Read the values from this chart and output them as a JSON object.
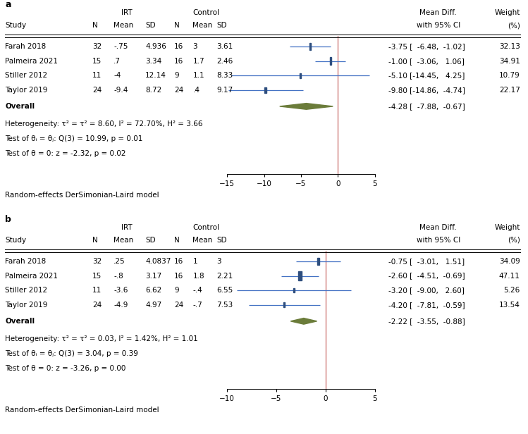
{
  "panel_a": {
    "label": "a",
    "studies": [
      {
        "name": "Farah 2018",
        "irt_n": "32",
        "irt_mean": "-.75",
        "irt_sd": "4.936",
        "ctrl_n": "16",
        "ctrl_mean": "3",
        "ctrl_sd": "3.61",
        "est": -3.75,
        "ci_lo": -6.48,
        "ci_hi": -1.02,
        "weight": "32.13"
      },
      {
        "name": "Palmeira 2021",
        "irt_n": "15",
        "irt_mean": ".7",
        "irt_sd": "3.34",
        "ctrl_n": "16",
        "ctrl_mean": "1.7",
        "ctrl_sd": "2.46",
        "est": -1.0,
        "ci_lo": -3.06,
        "ci_hi": 1.06,
        "weight": "34.91"
      },
      {
        "name": "Stiller 2012",
        "irt_n": "11",
        "irt_mean": "-4",
        "irt_sd": "12.14",
        "ctrl_n": "9",
        "ctrl_mean": "1.1",
        "ctrl_sd": "8.33",
        "est": -5.1,
        "ci_lo": -14.45,
        "ci_hi": 4.25,
        "weight": "10.79"
      },
      {
        "name": "Taylor 2019",
        "irt_n": "24",
        "irt_mean": "-9.4",
        "irt_sd": "8.72",
        "ctrl_n": "24",
        "ctrl_mean": ".4",
        "ctrl_sd": "9.17",
        "est": -9.8,
        "ci_lo": -14.86,
        "ci_hi": -4.74,
        "weight": "22.17"
      }
    ],
    "overall": {
      "est": -4.28,
      "ci_lo": -7.88,
      "ci_hi": -0.67
    },
    "xmin": -15,
    "xmax": 5,
    "xticks": [
      -15,
      -10,
      -5,
      0,
      5
    ],
    "heterogeneity": "τ² = 8.60, I² = 72.70%, H² = 3.66",
    "test_het": "Q(3) = 10.99, p = 0.01",
    "test_zero": "z = -2.32, p = 0.02",
    "ci_texts": [
      "-3.75 [  -6.48,  -1.02]",
      "-1.00 [  -3.06,   1.06]",
      "-5.10 [-14.45,   4.25]",
      "-9.80 [-14.86,  -4.74]"
    ],
    "overall_ci_text": "-4.28 [  -7.88,  -0.67]"
  },
  "panel_b": {
    "label": "b",
    "studies": [
      {
        "name": "Farah 2018",
        "irt_n": "32",
        "irt_mean": ".25",
        "irt_sd": "4.0837",
        "ctrl_n": "16",
        "ctrl_mean": "1",
        "ctrl_sd": "3",
        "est": -0.75,
        "ci_lo": -3.01,
        "ci_hi": 1.51,
        "weight": "34.09"
      },
      {
        "name": "Palmeira 2021",
        "irt_n": "15",
        "irt_mean": "-.8",
        "irt_sd": "3.17",
        "ctrl_n": "16",
        "ctrl_mean": "1.8",
        "ctrl_sd": "2.21",
        "est": -2.6,
        "ci_lo": -4.51,
        "ci_hi": -0.69,
        "weight": "47.11"
      },
      {
        "name": "Stiller 2012",
        "irt_n": "11",
        "irt_mean": "-3.6",
        "irt_sd": "6.62",
        "ctrl_n": "9",
        "ctrl_mean": "-.4",
        "ctrl_sd": "6.55",
        "est": -3.2,
        "ci_lo": -9.0,
        "ci_hi": 2.6,
        "weight": "5.26"
      },
      {
        "name": "Taylor 2019",
        "irt_n": "24",
        "irt_mean": "-4.9",
        "irt_sd": "4.97",
        "ctrl_n": "24",
        "ctrl_mean": "-.7",
        "ctrl_sd": "7.53",
        "est": -4.2,
        "ci_lo": -7.81,
        "ci_hi": -0.59,
        "weight": "13.54"
      }
    ],
    "overall": {
      "est": -2.22,
      "ci_lo": -3.55,
      "ci_hi": -0.88
    },
    "xmin": -10,
    "xmax": 5,
    "xticks": [
      -10,
      -5,
      0,
      5
    ],
    "heterogeneity": "τ² = 0.03, I² = 1.42%, H² = 1.01",
    "test_het": "Q(3) = 3.04, p = 0.39",
    "test_zero": "z = -3.26, p = 0.00",
    "ci_texts": [
      "-0.75 [  -3.01,   1.51]",
      "-2.60 [  -4.51,  -0.69]",
      "-3.20 [  -9.00,   2.60]",
      "-4.20 [  -7.81,  -0.59]"
    ],
    "overall_ci_text": "-2.22 [  -3.55,  -0.88]"
  },
  "colors": {
    "square": "#2E4E7E",
    "diamond": "#6B7C3A",
    "ci_line": "#4472C4",
    "zero_line": "#C0504D",
    "text": "#000000",
    "line": "#000000"
  },
  "fs": 7.5,
  "fs_label": 9
}
